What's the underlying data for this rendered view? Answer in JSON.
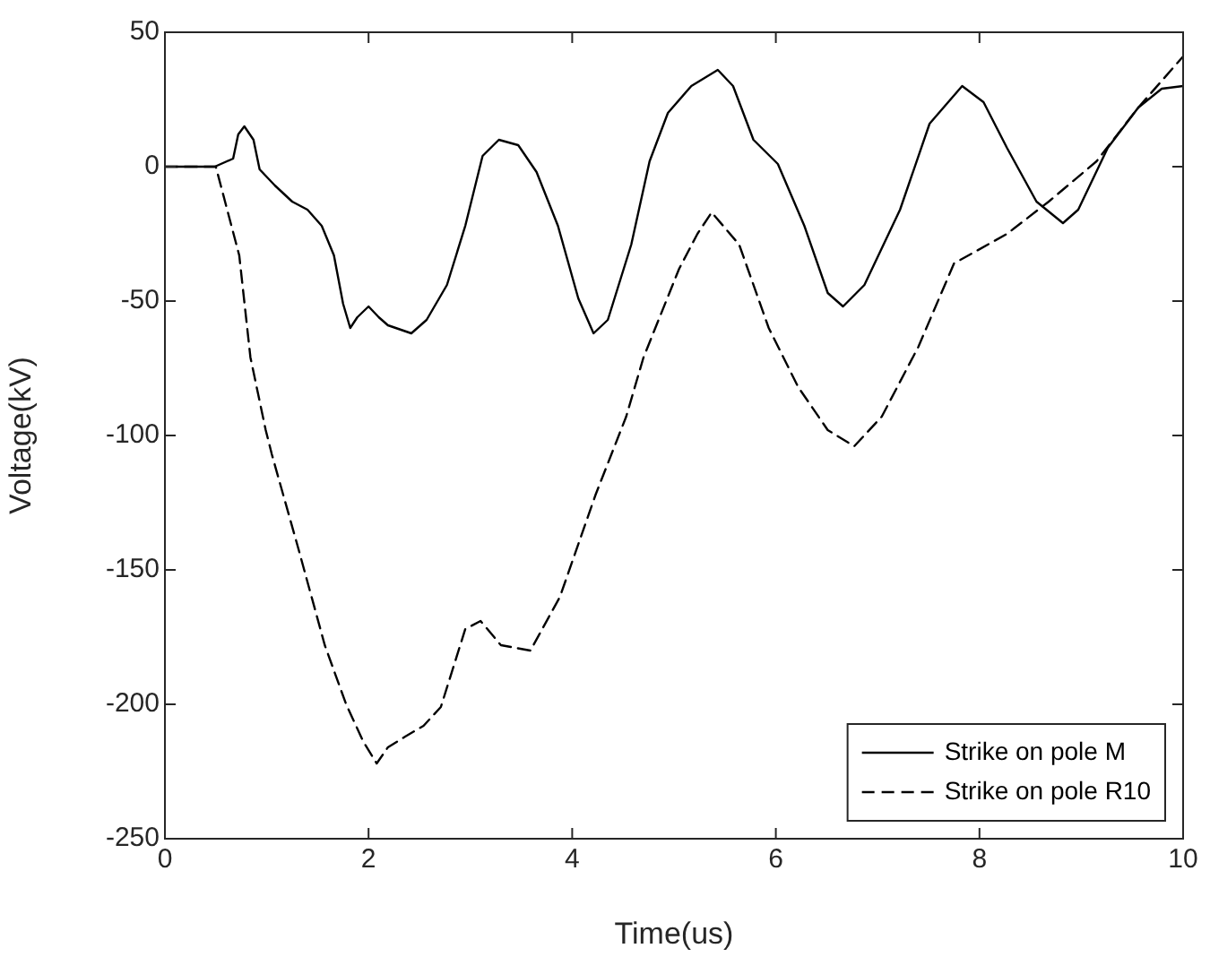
{
  "chart_data": {
    "type": "line",
    "xlabel": "Time(us)",
    "ylabel": "Voltage(kV)",
    "xlim": [
      0,
      10
    ],
    "ylim": [
      -250,
      50
    ],
    "xticks": [
      0,
      2,
      4,
      6,
      8,
      10
    ],
    "yticks": [
      -250,
      -200,
      -150,
      -100,
      -50,
      0,
      50
    ],
    "grid": false,
    "legend": "bottom right",
    "marker": "none",
    "series": [
      {
        "name": "Strike on pole M",
        "color": "#000000",
        "line_style": "solid",
        "x": [
          0,
          0.49,
          0.67,
          0.72,
          0.78,
          0.87,
          0.93,
          1.08,
          1.25,
          1.4,
          1.54,
          1.66,
          1.75,
          1.82,
          1.89,
          2.0,
          2.1,
          2.19,
          2.42,
          2.57,
          2.77,
          2.95,
          3.12,
          3.28,
          3.47,
          3.65,
          3.86,
          4.06,
          4.21,
          4.35,
          4.58,
          4.76,
          4.94,
          5.17,
          5.43,
          5.58,
          5.78,
          6.02,
          6.28,
          6.51,
          6.66,
          6.87,
          7.22,
          7.51,
          7.83,
          8.04,
          8.27,
          8.56,
          8.82,
          8.97,
          9.26,
          9.56,
          9.79,
          10
        ],
        "values": [
          0,
          0,
          3,
          12,
          15,
          10,
          -1,
          -7,
          -13,
          -16,
          -22,
          -33,
          -51,
          -60,
          -56,
          -52,
          -56,
          -59,
          -62,
          -57,
          -44,
          -22,
          4,
          10,
          8,
          -2,
          -22,
          -49,
          -62,
          -57,
          -29,
          2,
          20,
          30,
          36,
          30,
          10,
          1,
          -22,
          -47,
          -52,
          -44,
          -16,
          16,
          30,
          24,
          7,
          -13,
          -21,
          -16,
          7,
          22,
          29,
          30
        ]
      },
      {
        "name": "Strike on pole R10",
        "color": "#000000",
        "line_style": "dashed",
        "x": [
          0,
          0.5,
          0.73,
          0.84,
          0.99,
          1.05,
          1.31,
          1.57,
          1.78,
          1.95,
          2.08,
          2.19,
          2.36,
          2.54,
          2.71,
          2.95,
          3.1,
          3.3,
          3.59,
          3.88,
          4.23,
          4.53,
          4.7,
          5.05,
          5.23,
          5.37,
          5.64,
          5.93,
          6.22,
          6.51,
          6.77,
          7.04,
          7.4,
          7.75,
          8.27,
          8.68,
          9.15,
          9.56,
          10
        ],
        "values": [
          0,
          0,
          -33,
          -71,
          -98,
          -107,
          -142,
          -178,
          -200,
          -214,
          -222,
          -216,
          -212,
          -208,
          -201,
          -172,
          -169,
          -178,
          -180,
          -160,
          -122,
          -93,
          -71,
          -38,
          -25,
          -17,
          -29,
          -60,
          -82,
          -98,
          -104,
          -93,
          -67,
          -36,
          -25,
          -13,
          2,
          22,
          41
        ]
      }
    ]
  }
}
